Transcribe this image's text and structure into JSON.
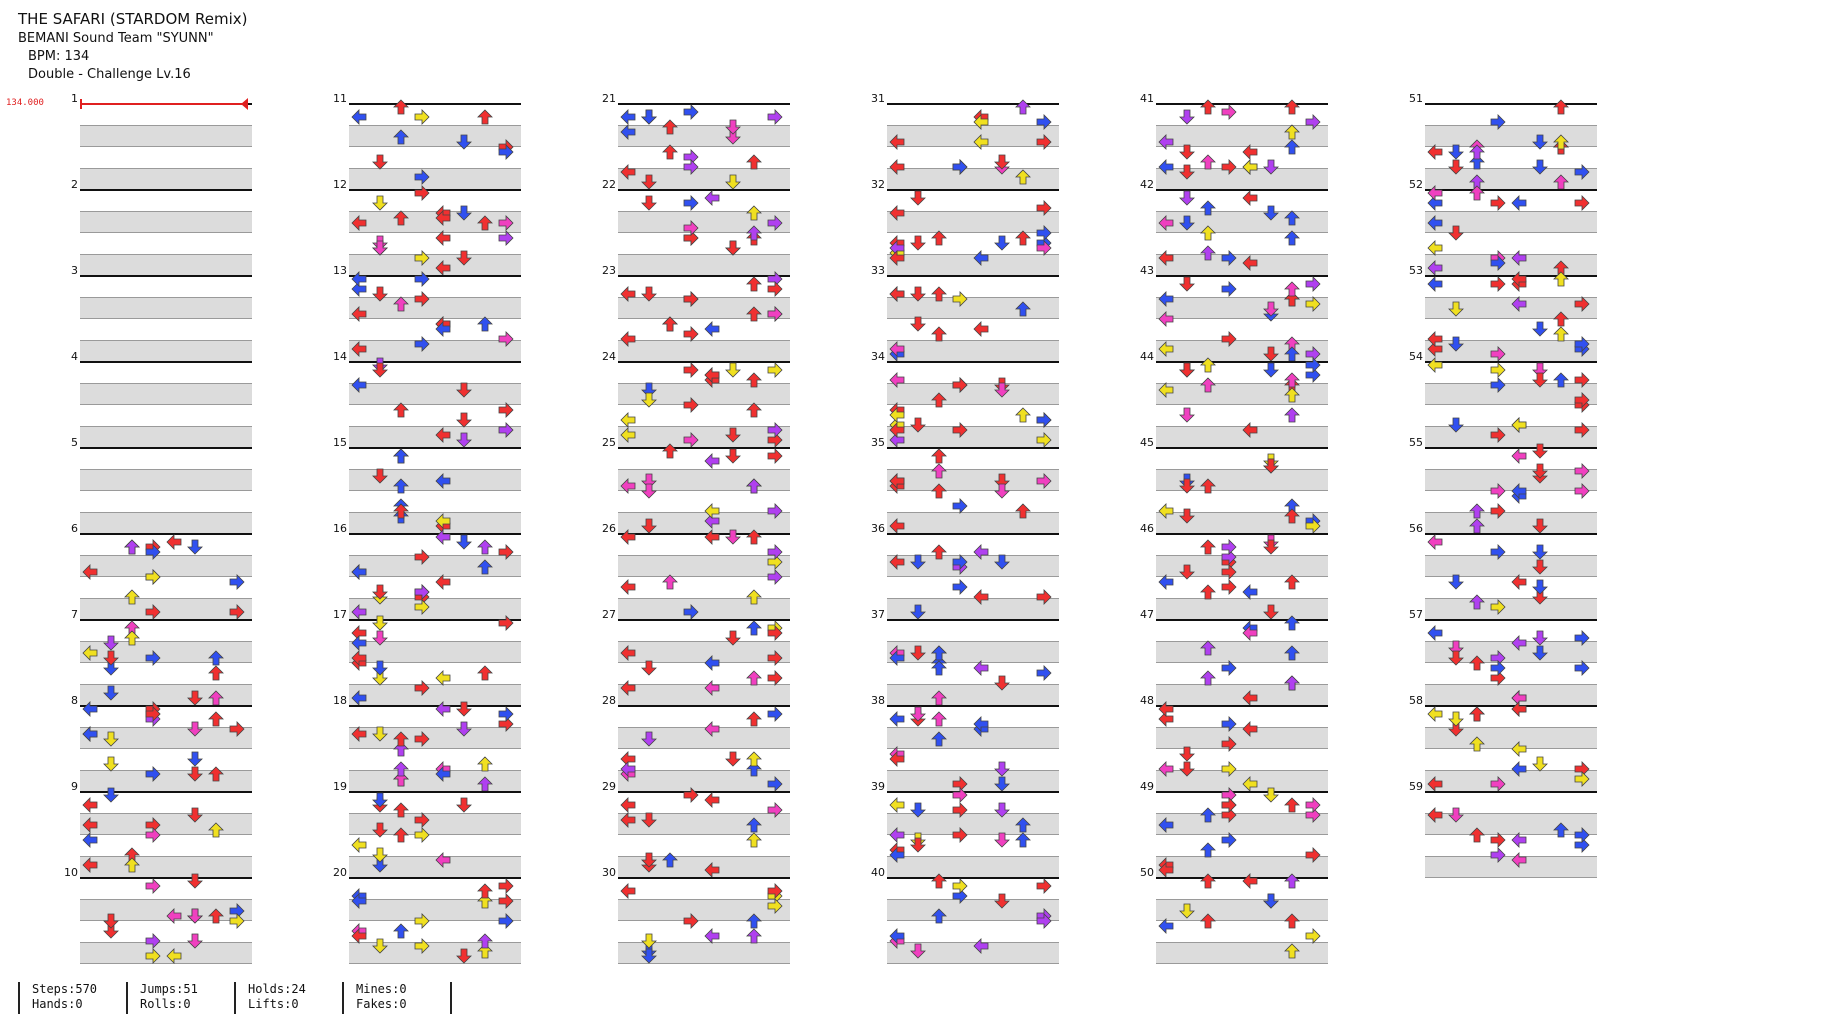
{
  "song": {
    "title": "THE SAFARI (STARDOM Remix)",
    "artist": "BEMANI Sound Team \"SYUNN\"",
    "bpm_label": "BPM: 134",
    "difficulty_label": "Double - Challenge Lv.16"
  },
  "bpm_marker": "134.000",
  "columns": [
    {
      "start": 1
    },
    {
      "start": 11
    },
    {
      "start": 21
    },
    {
      "start": 31
    },
    {
      "start": 41
    },
    {
      "start": 51
    }
  ],
  "total_measures": 59,
  "colors": {
    "quarter": "#f03030",
    "eighth": "#3050f0",
    "sixteenth": "#f0e020",
    "twelfth": "#b040f0",
    "twentyfourth": "#f040c0",
    "hold_green": "#60c060",
    "bpm_line": "#e02020",
    "band": "#dcdcdc"
  },
  "stats": {
    "steps": "Steps:570",
    "hands": "Hands:0",
    "jumps": "Jumps:51",
    "rolls": "Rolls:0",
    "holds": "Holds:24",
    "lifts": "Lifts:0",
    "mines": "Mines:0",
    "fakes": "Fakes:0"
  }
}
